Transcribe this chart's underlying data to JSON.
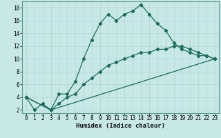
{
  "xlabel": "Humidex (Indice chaleur)",
  "background_color": "#c8e8e8",
  "line_color": "#1a6b5a",
  "grid_color": "#b0d4d4",
  "spine_color": "#5a9a8a",
  "xlim": [
    -0.5,
    23.5
  ],
  "ylim": [
    1.5,
    19.0
  ],
  "xticks": [
    0,
    1,
    2,
    3,
    4,
    5,
    6,
    7,
    8,
    9,
    10,
    11,
    12,
    13,
    14,
    15,
    16,
    17,
    18,
    19,
    20,
    21,
    22,
    23
  ],
  "yticks": [
    2,
    4,
    6,
    8,
    10,
    12,
    14,
    16,
    18
  ],
  "line1_x": [
    0,
    1,
    2,
    3,
    4,
    5,
    6,
    7,
    8,
    9,
    10,
    11,
    12,
    13,
    14,
    15,
    16,
    17,
    18,
    19,
    20,
    21,
    22,
    23
  ],
  "line1_y": [
    4,
    2,
    3,
    2,
    4.5,
    4.5,
    6.5,
    10,
    13,
    15.5,
    17,
    16,
    17,
    17.5,
    18.5,
    17,
    15.5,
    14.5,
    12.5,
    11.5,
    11,
    10.5,
    10.5,
    10
  ],
  "line2_x": [
    0,
    3,
    4,
    5,
    6,
    7,
    8,
    9,
    10,
    11,
    12,
    13,
    14,
    15,
    16,
    17,
    18,
    19,
    20,
    21,
    22,
    23
  ],
  "line2_y": [
    4,
    2,
    3,
    4,
    4.5,
    6,
    7,
    8,
    9,
    9.5,
    10,
    10.5,
    11,
    11,
    11.5,
    11.5,
    12,
    12,
    11.5,
    11,
    10.5,
    10
  ],
  "line3_x": [
    0,
    3,
    23
  ],
  "line3_y": [
    4,
    2,
    10
  ],
  "tick_labelsize": 5.5,
  "xlabel_fontsize": 6.5
}
